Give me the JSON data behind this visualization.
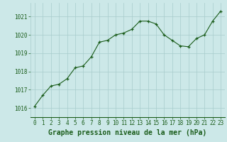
{
  "x": [
    0,
    1,
    2,
    3,
    4,
    5,
    6,
    7,
    8,
    9,
    10,
    11,
    12,
    13,
    14,
    15,
    16,
    17,
    18,
    19,
    20,
    21,
    22,
    23
  ],
  "y": [
    1016.1,
    1016.7,
    1017.2,
    1017.3,
    1017.6,
    1018.2,
    1018.3,
    1018.8,
    1019.6,
    1019.7,
    1020.0,
    1020.1,
    1020.3,
    1020.75,
    1020.75,
    1020.6,
    1020.0,
    1019.7,
    1019.4,
    1019.35,
    1019.8,
    1020.0,
    1020.75,
    1021.3
  ],
  "line_color": "#1a5c1a",
  "marker": "+",
  "marker_color": "#1a5c1a",
  "bg_color": "#cce8e8",
  "grid_color": "#a8cccc",
  "xlabel": "Graphe pression niveau de la mer (hPa)",
  "xlabel_color": "#1a5c1a",
  "tick_color": "#1a5c1a",
  "ylim": [
    1015.5,
    1021.75
  ],
  "yticks": [
    1016,
    1017,
    1018,
    1019,
    1020,
    1021
  ],
  "xlim": [
    -0.5,
    23.5
  ],
  "xticks": [
    0,
    1,
    2,
    3,
    4,
    5,
    6,
    7,
    8,
    9,
    10,
    11,
    12,
    13,
    14,
    15,
    16,
    17,
    18,
    19,
    20,
    21,
    22,
    23
  ],
  "tick_fontsize": 5.5,
  "xlabel_fontsize": 7.0,
  "linewidth": 0.8,
  "markersize": 3.5,
  "markeredgewidth": 0.9
}
